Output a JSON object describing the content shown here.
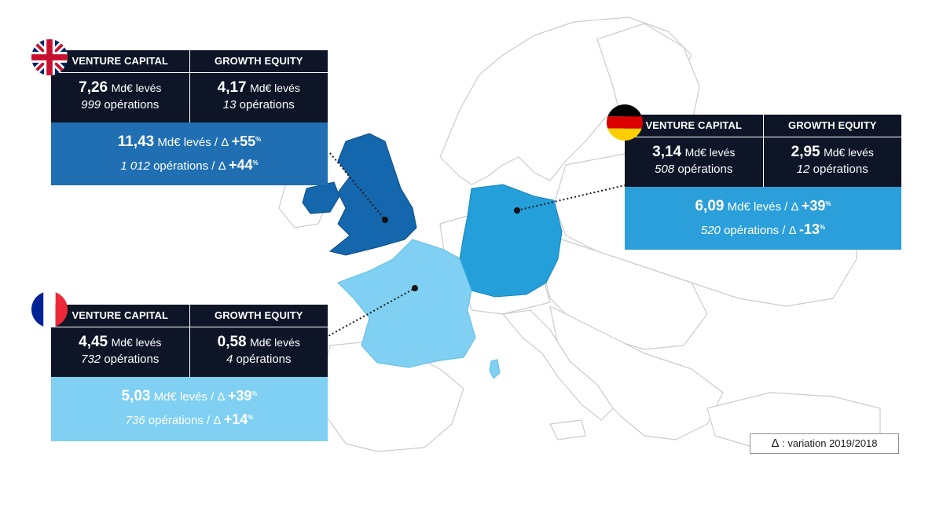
{
  "legend": {
    "symbol": "Δ",
    "text": " : variation 2019/2018"
  },
  "panels": {
    "uk": {
      "country": "United Kingdom",
      "vc_label": "VENTURE CAPITAL",
      "ge_label": "GROWTH EQUITY",
      "vc_value": "7,26",
      "vc_unit": "Md€ levés",
      "vc_ops_n": "999",
      "vc_ops_unit": "opérations",
      "ge_value": "4,17",
      "ge_unit": "Md€ levés",
      "ge_ops_n": "13",
      "ge_ops_unit": "opérations",
      "total_value": "11,43",
      "total_text": "Md€ levés / Δ",
      "total_delta": "+55",
      "total_delta_unit": "%",
      "ops_total": "1 012",
      "ops_text": "opérations / Δ",
      "ops_delta": "+44",
      "ops_delta_unit": "%",
      "color": "#1f6fb2"
    },
    "de": {
      "country": "Germany",
      "vc_label": "VENTURE CAPITAL",
      "ge_label": "GROWTH EQUITY",
      "vc_value": "3,14",
      "vc_unit": "Md€ levés",
      "vc_ops_n": "508",
      "vc_ops_unit": "opérations",
      "ge_value": "2,95",
      "ge_unit": "Md€ levés",
      "ge_ops_n": "12",
      "ge_ops_unit": "opérations",
      "total_value": "6,09",
      "total_text": "Md€ levés / Δ",
      "total_delta": "+39",
      "total_delta_unit": "%",
      "ops_total": "520",
      "ops_text": "opérations / Δ",
      "ops_delta": "-13",
      "ops_delta_unit": "%",
      "color": "#2b9fd9"
    },
    "fr": {
      "country": "France",
      "vc_label": "VENTURE CAPITAL",
      "ge_label": "GROWTH EQUITY",
      "vc_value": "4,45",
      "vc_unit": "Md€ levés",
      "vc_ops_n": "732",
      "vc_ops_unit": "opérations",
      "ge_value": "0,58",
      "ge_unit": "Md€ levés",
      "ge_ops_n": "4",
      "ge_ops_unit": "opérations",
      "total_value": "5,03",
      "total_text": "Md€ levés / Δ",
      "total_delta": "+39",
      "total_delta_unit": "%",
      "ops_total": "736",
      "ops_text": "opérations / Δ",
      "ops_delta": "+14",
      "ops_delta_unit": "%",
      "color": "#7fd0f2"
    }
  },
  "map_colors": {
    "land": "#ffffff",
    "border": "#c8ccd2",
    "uk": "#1466ad",
    "de": "#249fda",
    "fr": "#7fd0f2",
    "dark_panel": "#0d1526"
  }
}
